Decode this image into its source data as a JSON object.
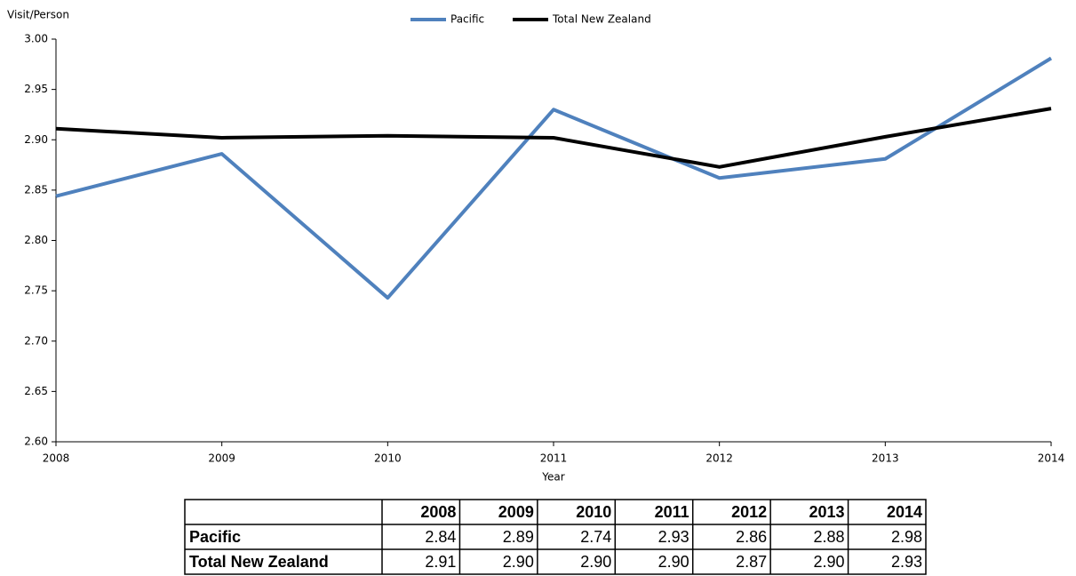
{
  "chart_data": {
    "type": "line",
    "y_label": "Visit/Person",
    "x_label": "Year",
    "categories": [
      "2008",
      "2009",
      "2010",
      "2011",
      "2012",
      "2013",
      "2014"
    ],
    "series": [
      {
        "name": "Pacific",
        "color": "#4f81bd",
        "values": [
          2.844,
          2.886,
          2.743,
          2.93,
          2.862,
          2.881,
          2.981
        ],
        "value_labels": [
          "2.84",
          "2.89",
          "2.74",
          "2.93",
          "2.86",
          "2.88",
          "2.98"
        ]
      },
      {
        "name": "Total New Zealand",
        "color": "#000000",
        "values": [
          2.911,
          2.902,
          2.904,
          2.902,
          2.873,
          2.903,
          2.931
        ],
        "value_labels": [
          "2.91",
          "2.90",
          "2.90",
          "2.90",
          "2.87",
          "2.90",
          "2.93"
        ]
      }
    ],
    "ylim": [
      2.6,
      3.0
    ],
    "yticks": [
      {
        "value": 2.6,
        "label": "2.60"
      },
      {
        "value": 2.65,
        "label": "2.65"
      },
      {
        "value": 2.7,
        "label": "2.70"
      },
      {
        "value": 2.75,
        "label": "2.75"
      },
      {
        "value": 2.8,
        "label": "2.80"
      },
      {
        "value": 2.85,
        "label": "2.85"
      },
      {
        "value": 2.9,
        "label": "2.90"
      },
      {
        "value": 2.95,
        "label": "2.95"
      },
      {
        "value": 3.0,
        "label": "3.00"
      }
    ],
    "grid": false,
    "legend": "top"
  }
}
